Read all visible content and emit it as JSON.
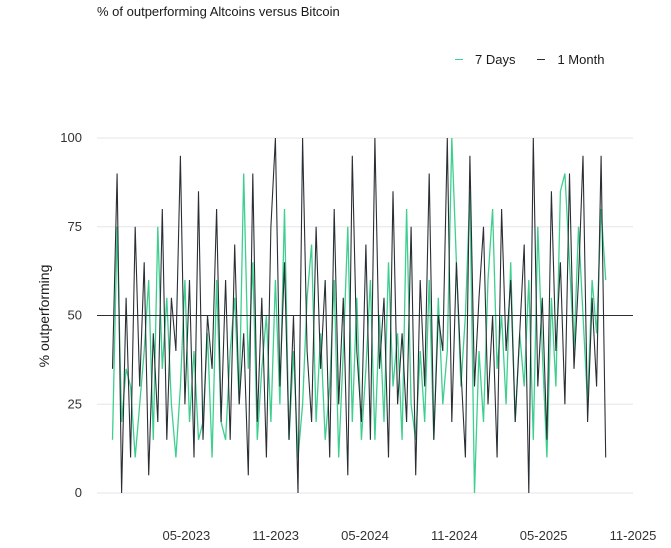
{
  "chart_data": {
    "type": "line",
    "title": "% of outperforming Altcoins versus Bitcoin",
    "xlabel": "",
    "ylabel": "% outperforming",
    "ylim": [
      0,
      100
    ],
    "yticks": [
      0,
      25,
      50,
      75,
      100
    ],
    "xlim": [
      2022.833,
      2025.833
    ],
    "xticks": [
      {
        "label": "05-2023",
        "value": 2023.333
      },
      {
        "label": "11-2023",
        "value": 2023.833
      },
      {
        "label": "05-2024",
        "value": 2024.333
      },
      {
        "label": "11-2024",
        "value": 2024.833
      },
      {
        "label": "05-2025",
        "value": 2025.333
      },
      {
        "label": "11-2025",
        "value": 2025.833
      }
    ],
    "reference_line": {
      "y": 50
    },
    "x_start": 2022.92,
    "x_end": 2025.68,
    "legend_position": "top-right",
    "series": [
      {
        "name": "7 Days",
        "color": "#3ecf8e",
        "values": [
          15,
          75,
          20,
          35,
          30,
          10,
          25,
          40,
          60,
          15,
          75,
          35,
          55,
          25,
          10,
          30,
          60,
          20,
          40,
          15,
          20,
          45,
          10,
          60,
          20,
          15,
          40,
          55,
          25,
          90,
          35,
          65,
          15,
          35,
          50,
          20,
          60,
          25,
          80,
          15,
          40,
          10,
          25,
          55,
          70,
          20,
          45,
          15,
          30,
          60,
          10,
          40,
          75,
          20,
          55,
          15,
          35,
          60,
          15,
          50,
          20,
          65,
          30,
          45,
          15,
          80,
          25,
          15,
          40,
          20,
          60,
          15,
          55,
          25,
          40,
          100,
          65,
          30,
          50,
          85,
          0,
          40,
          20,
          60,
          80,
          35,
          50,
          25,
          65,
          20,
          45,
          30,
          60,
          15,
          75,
          40,
          10,
          55,
          30,
          85,
          90,
          65,
          40,
          75,
          50,
          25,
          60,
          45,
          80,
          60
        ]
      },
      {
        "name": "1 Month",
        "color": "#2a2f35",
        "values": [
          35,
          90,
          0,
          55,
          10,
          75,
          30,
          65,
          5,
          45,
          20,
          80,
          15,
          55,
          40,
          95,
          25,
          60,
          10,
          85,
          15,
          50,
          35,
          80,
          20,
          60,
          15,
          70,
          25,
          45,
          5,
          90,
          20,
          55,
          10,
          75,
          100,
          30,
          65,
          15,
          50,
          0,
          100,
          40,
          20,
          75,
          35,
          60,
          10,
          80,
          25,
          55,
          5,
          95,
          40,
          20,
          70,
          15,
          100,
          35,
          55,
          10,
          85,
          25,
          45,
          20,
          75,
          5,
          60,
          30,
          90,
          15,
          50,
          40,
          100,
          20,
          65,
          35,
          10,
          95,
          30,
          55,
          75,
          25,
          50,
          10,
          80,
          40,
          60,
          20,
          45,
          70,
          0,
          100,
          30,
          55,
          15,
          85,
          40,
          65,
          25,
          90,
          35,
          60,
          95,
          20,
          55,
          30,
          95,
          10
        ]
      }
    ]
  }
}
